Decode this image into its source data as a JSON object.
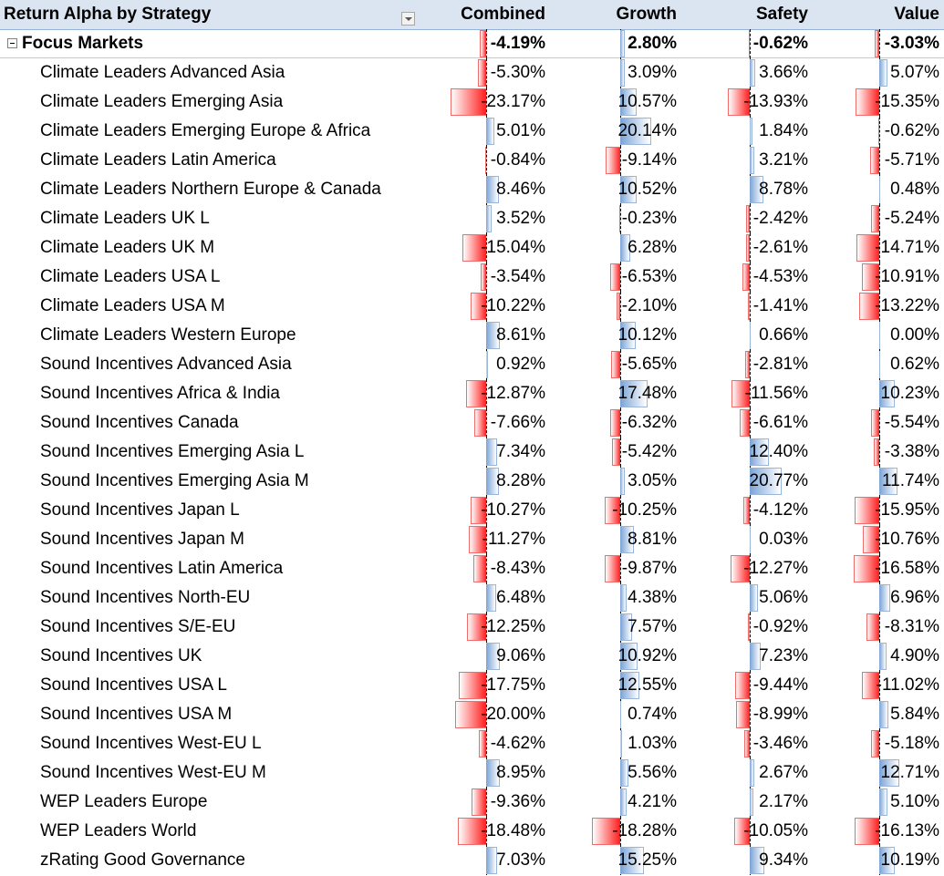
{
  "header": {
    "title": "Return Alpha by Strategy",
    "columns": [
      "Combined",
      "Growth",
      "Safety",
      "Value"
    ]
  },
  "group": {
    "label": "Focus Markets",
    "values": [
      "-4.19%",
      "2.80%",
      "-0.62%",
      "-3.03%"
    ]
  },
  "rows": [
    {
      "label": "Climate Leaders Advanced Asia",
      "values": [
        "-5.30%",
        "3.09%",
        "3.66%",
        "5.07%"
      ]
    },
    {
      "label": "Climate Leaders Emerging Asia",
      "values": [
        "-23.17%",
        "10.57%",
        "-13.93%",
        "-15.35%"
      ]
    },
    {
      "label": "Climate Leaders Emerging Europe & Africa",
      "values": [
        "5.01%",
        "20.14%",
        "1.84%",
        "-0.62%"
      ]
    },
    {
      "label": "Climate Leaders Latin America",
      "values": [
        "-0.84%",
        "-9.14%",
        "3.21%",
        "-5.71%"
      ]
    },
    {
      "label": "Climate Leaders Northern Europe & Canada",
      "values": [
        "8.46%",
        "10.52%",
        "8.78%",
        "0.48%"
      ]
    },
    {
      "label": "Climate Leaders UK L",
      "values": [
        "3.52%",
        "-0.23%",
        "-2.42%",
        "-5.24%"
      ]
    },
    {
      "label": "Climate Leaders UK M",
      "values": [
        "-15.04%",
        "6.28%",
        "-2.61%",
        "-14.71%"
      ]
    },
    {
      "label": "Climate Leaders USA L",
      "values": [
        "-3.54%",
        "-6.53%",
        "-4.53%",
        "-10.91%"
      ]
    },
    {
      "label": "Climate Leaders USA M",
      "values": [
        "-10.22%",
        "-2.10%",
        "-1.41%",
        "-13.22%"
      ]
    },
    {
      "label": "Climate Leaders Western Europe",
      "values": [
        "8.61%",
        "10.12%",
        "0.66%",
        "0.00%"
      ]
    },
    {
      "label": "Sound Incentives Advanced Asia",
      "values": [
        "0.92%",
        "-5.65%",
        "-2.81%",
        "0.62%"
      ]
    },
    {
      "label": "Sound Incentives Africa & India",
      "values": [
        "-12.87%",
        "17.48%",
        "-11.56%",
        "10.23%"
      ]
    },
    {
      "label": "Sound Incentives Canada",
      "values": [
        "-7.66%",
        "-6.32%",
        "-6.61%",
        "-5.54%"
      ]
    },
    {
      "label": "Sound Incentives Emerging Asia L",
      "values": [
        "7.34%",
        "-5.42%",
        "12.40%",
        "-3.38%"
      ]
    },
    {
      "label": "Sound Incentives Emerging Asia M",
      "values": [
        "8.28%",
        "3.05%",
        "20.77%",
        "11.74%"
      ]
    },
    {
      "label": "Sound Incentives Japan L",
      "values": [
        "-10.27%",
        "-10.25%",
        "-4.12%",
        "-15.95%"
      ]
    },
    {
      "label": "Sound Incentives Japan M",
      "values": [
        "-11.27%",
        "8.81%",
        "0.03%",
        "-10.76%"
      ]
    },
    {
      "label": "Sound Incentives Latin America",
      "values": [
        "-8.43%",
        "-9.87%",
        "-12.27%",
        "-16.58%"
      ]
    },
    {
      "label": "Sound Incentives North-EU",
      "values": [
        "6.48%",
        "4.38%",
        "5.06%",
        "6.96%"
      ]
    },
    {
      "label": "Sound Incentives S/E-EU",
      "values": [
        "-12.25%",
        "7.57%",
        "-0.92%",
        "-8.31%"
      ]
    },
    {
      "label": "Sound Incentives UK",
      "values": [
        "9.06%",
        "10.92%",
        "7.23%",
        "4.90%"
      ]
    },
    {
      "label": "Sound Incentives USA L",
      "values": [
        "-17.75%",
        "12.55%",
        "-9.44%",
        "-11.02%"
      ]
    },
    {
      "label": "Sound Incentives USA M",
      "values": [
        "-20.00%",
        "0.74%",
        "-8.99%",
        "5.84%"
      ]
    },
    {
      "label": "Sound Incentives West-EU L",
      "values": [
        "-4.62%",
        "1.03%",
        "-3.46%",
        "-5.18%"
      ]
    },
    {
      "label": "Sound Incentives West-EU M",
      "values": [
        "8.95%",
        "5.56%",
        "2.67%",
        "12.71%"
      ]
    },
    {
      "label": "WEP Leaders Europe",
      "values": [
        "-9.36%",
        "4.21%",
        "2.17%",
        "5.10%"
      ]
    },
    {
      "label": "WEP Leaders World",
      "values": [
        "-18.48%",
        "-18.28%",
        "-10.05%",
        "-16.13%"
      ]
    },
    {
      "label": "zRating Good Governance",
      "values": [
        "7.03%",
        "15.25%",
        "9.34%",
        "10.19%"
      ]
    }
  ],
  "colors": {
    "positive_bar": "#7aa3d6",
    "negative_bar": "#ff1c1c",
    "header_bg": "#dbe5f1"
  },
  "icons": {
    "filter_dropdown": "chevron-down-icon",
    "collapse_toggle": "minus-box-icon"
  }
}
